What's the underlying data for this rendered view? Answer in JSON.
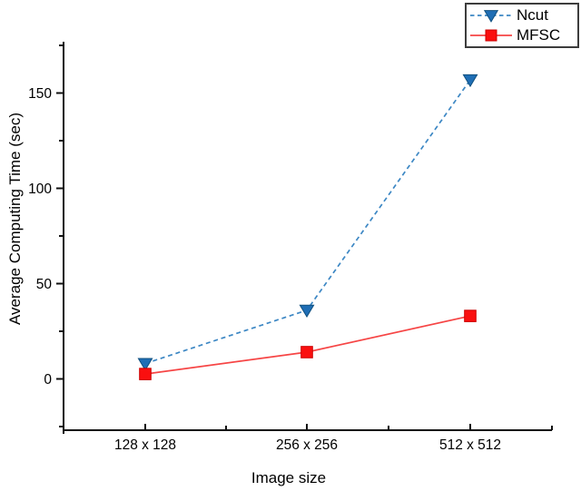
{
  "chart_data": {
    "type": "line",
    "title": "",
    "xlabel": "Image size",
    "ylabel": "Average Computing Time (sec)",
    "categories": [
      "128 x 128",
      "256 x 256",
      "512 x 512"
    ],
    "series": [
      {
        "name": "Ncut",
        "values": [
          8,
          36,
          157
        ],
        "marker": "triangle-down",
        "line_style": "dashed",
        "marker_color": "#1f6eb5",
        "marker_edge_color": "#10507f",
        "line_color": "#3c87c4"
      },
      {
        "name": "MFSC",
        "values": [
          2.5,
          14,
          33
        ],
        "marker": "square",
        "line_style": "solid",
        "marker_color": "#fa0f0f",
        "marker_edge_color": "#cc0000",
        "line_color": "#f64545"
      }
    ],
    "yticks": [
      0,
      50,
      100,
      150
    ],
    "yminorticks": [
      -25,
      25,
      75,
      125,
      175
    ],
    "ylim": [
      -27,
      177
    ],
    "grid": false,
    "legend_position": "top-right",
    "axis_color": "#111111"
  }
}
